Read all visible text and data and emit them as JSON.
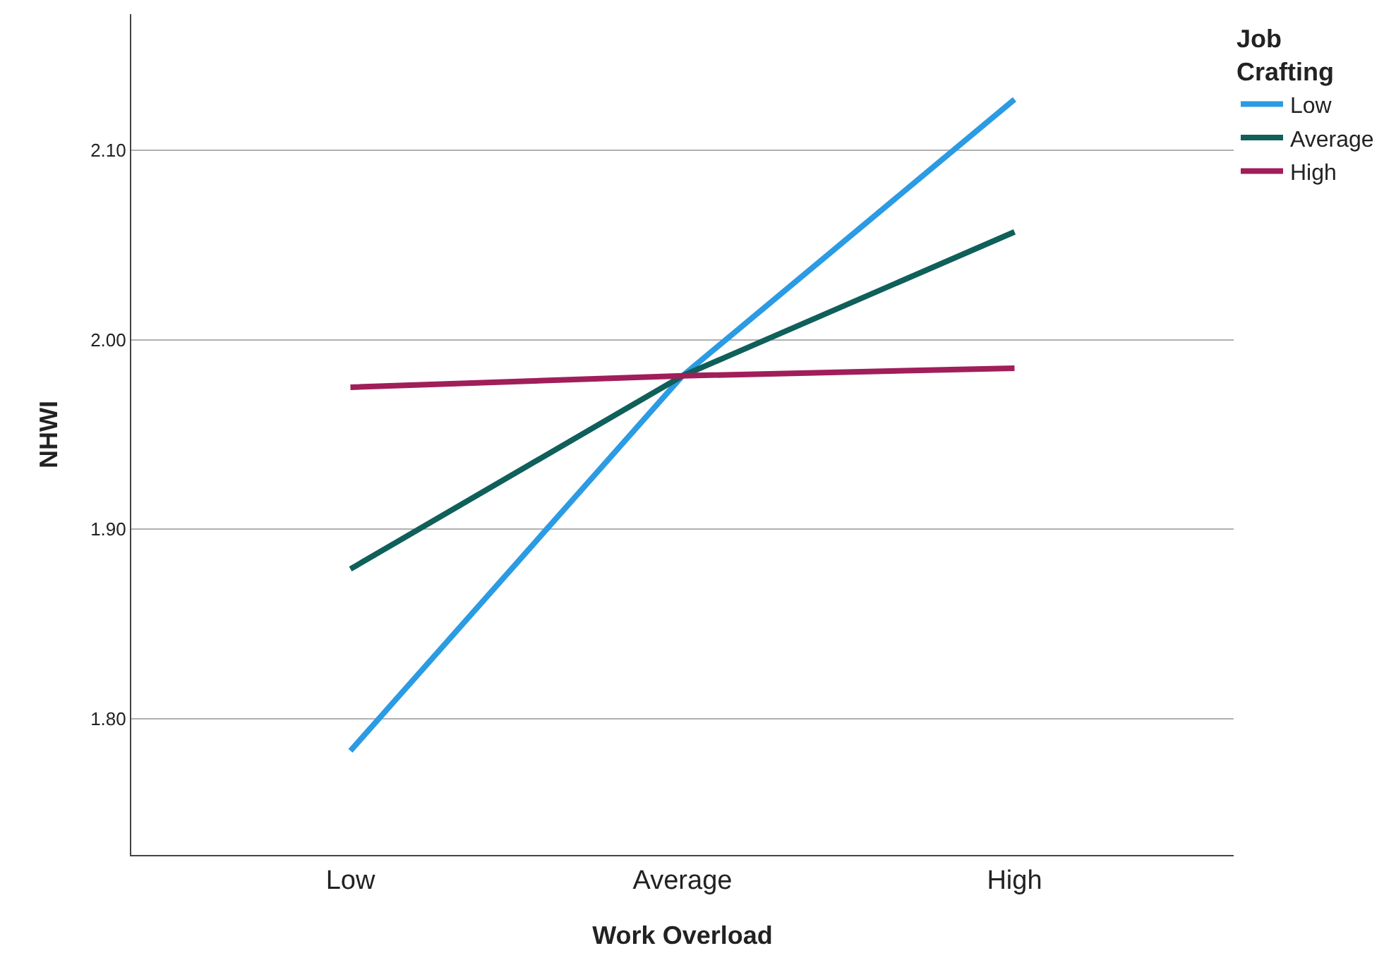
{
  "chart_data": {
    "type": "line",
    "xlabel": "Work Overload",
    "ylabel": "NHWI",
    "legend_title": "Job Crafting",
    "categories": [
      "Low",
      "Average",
      "High"
    ],
    "series": [
      {
        "name": "Low",
        "color": "#2b9be3",
        "values": [
          1.783,
          1.981,
          2.127
        ]
      },
      {
        "name": "Average",
        "color": "#0f5f5a",
        "values": [
          1.879,
          1.981,
          2.057
        ]
      },
      {
        "name": "High",
        "color": "#a01e5a",
        "values": [
          1.975,
          1.981,
          1.985
        ]
      }
    ],
    "ylim": [
      1.728,
      2.172
    ],
    "yticks": [
      {
        "value": 1.8,
        "label": "1.80"
      },
      {
        "value": 1.9,
        "label": "1.90"
      },
      {
        "value": 2.0,
        "label": "2.00"
      },
      {
        "value": 2.1,
        "label": "2.10"
      }
    ],
    "grid": "y",
    "legend": "top right",
    "marker": "none",
    "line_style": "solid"
  }
}
